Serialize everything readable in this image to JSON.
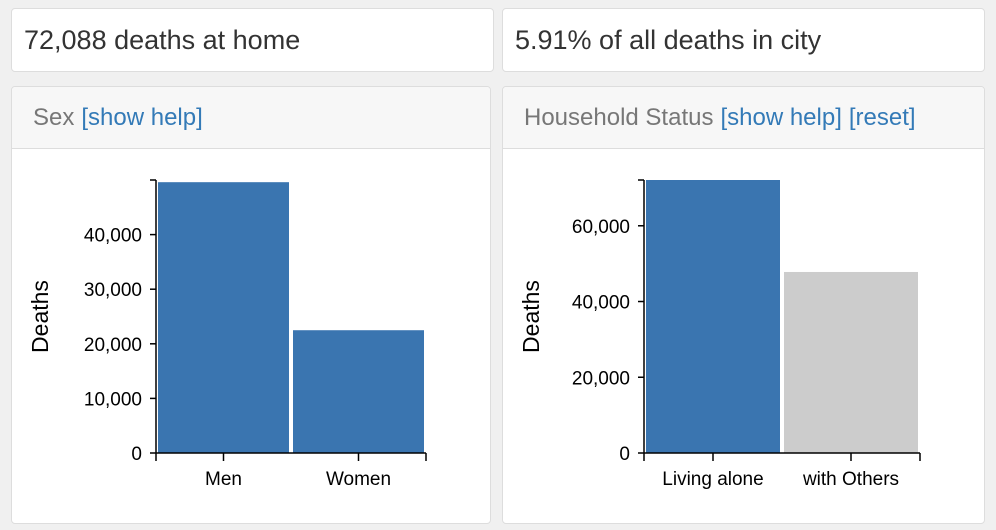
{
  "stats": {
    "deaths_at_home": "72,088 deaths at home",
    "share_of_city": "5.91% of all deaths in city"
  },
  "panels": {
    "sex": {
      "title": "Sex",
      "help_link": "[show help]"
    },
    "household": {
      "title": "Household Status",
      "help_link": "[show help]",
      "reset_link": "[reset]"
    }
  },
  "colors": {
    "bar_selected": "#3a75b0",
    "bar_unselected": "#cccccc"
  },
  "chart_data": [
    {
      "type": "bar",
      "title": "Sex",
      "categories": [
        "Men",
        "Women"
      ],
      "values": [
        49600,
        22488
      ],
      "ylabel": "Deaths",
      "xlabel": "",
      "ylim": [
        0,
        50000
      ],
      "yticks": [
        0,
        10000,
        20000,
        30000,
        40000
      ],
      "ytick_labels": [
        "0",
        "10,000",
        "20,000",
        "30,000",
        "40,000"
      ],
      "selected": [
        true,
        true
      ]
    },
    {
      "type": "bar",
      "title": "Household Status",
      "categories": [
        "Living alone",
        "with Others"
      ],
      "values": [
        72088,
        47800
      ],
      "ylabel": "Deaths",
      "xlabel": "",
      "ylim": [
        0,
        72088
      ],
      "yticks": [
        0,
        20000,
        40000,
        60000
      ],
      "ytick_labels": [
        "0",
        "20,000",
        "40,000",
        "60,000"
      ],
      "selected": [
        true,
        false
      ]
    }
  ]
}
